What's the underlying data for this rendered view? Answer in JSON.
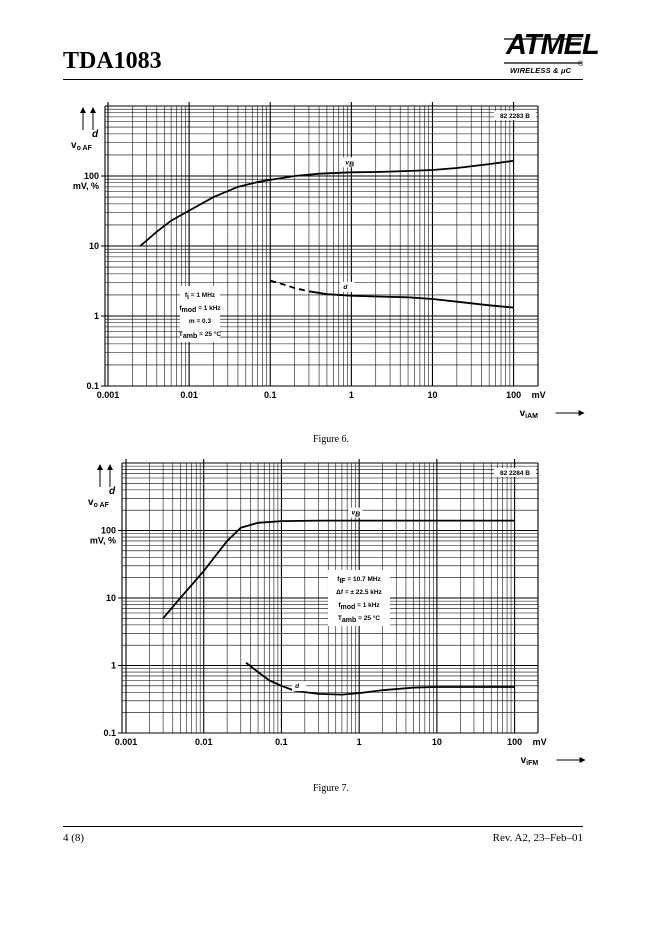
{
  "header": {
    "title": "TDA1083",
    "logo_text": "ATMEL",
    "logo_registered": "®",
    "logo_subtitle": "WIRELESS & μC"
  },
  "footer": {
    "page": "4 (8)",
    "revision": "Rev. A2, 23–Feb–01"
  },
  "chart_data": [
    {
      "type": "line",
      "caption": "Figure 6.",
      "reference": "82 2283 B",
      "x_axis": {
        "label_main": "v",
        "label_sub": "iAM",
        "unit": "mV",
        "scale": "log",
        "range": [
          0.001,
          200
        ],
        "ticks": [
          "0.001",
          "0.01",
          "0.1",
          "1",
          "10",
          "100"
        ]
      },
      "y_axis": {
        "label_d": "d",
        "label_main": "v",
        "label_sub": "o AF",
        "unit": "mV, %",
        "scale": "log",
        "range": [
          0.1,
          1000
        ],
        "ticks": [
          "0.1",
          "1",
          "10",
          "100"
        ]
      },
      "series": [
        {
          "name": "v",
          "name_sub": "B",
          "points": [
            [
              0.0025,
              10
            ],
            [
              0.004,
              16
            ],
            [
              0.006,
              23
            ],
            [
              0.01,
              32
            ],
            [
              0.02,
              50
            ],
            [
              0.04,
              70
            ],
            [
              0.07,
              82
            ],
            [
              0.1,
              88
            ],
            [
              0.2,
              100
            ],
            [
              0.4,
              108
            ],
            [
              1,
              113
            ],
            [
              2,
              114
            ],
            [
              5,
              118
            ],
            [
              10,
              122
            ],
            [
              20,
              130
            ],
            [
              50,
              148
            ],
            [
              100,
              165
            ]
          ]
        },
        {
          "name": "d",
          "name_sub": "",
          "points": [
            [
              0.1,
              3.2
            ],
            [
              0.15,
              2.8
            ],
            [
              0.2,
              2.5
            ],
            [
              0.3,
              2.25
            ],
            [
              0.5,
              2.05
            ],
            [
              1,
              1.95
            ],
            [
              2,
              1.9
            ],
            [
              5,
              1.85
            ],
            [
              10,
              1.75
            ],
            [
              20,
              1.6
            ],
            [
              50,
              1.42
            ],
            [
              100,
              1.32
            ]
          ],
          "dashed_until": 0.22
        }
      ],
      "conditions": [
        {
          "main": "f",
          "sub": "i",
          "rest": " = 1 MHz"
        },
        {
          "main": "f",
          "sub": "mod",
          "rest": " = 1 kHz"
        },
        {
          "main": "m = 0.3",
          "sub": "",
          "rest": ""
        },
        {
          "main": "T",
          "sub": "amb",
          "rest": " = 25 °C"
        }
      ]
    },
    {
      "type": "line",
      "caption": "Figure 7.",
      "reference": "82 2284 B",
      "x_axis": {
        "label_main": "v",
        "label_sub": "iFM",
        "unit": "mV",
        "scale": "log",
        "range": [
          0.001,
          200
        ],
        "ticks": [
          "0.001",
          "0.01",
          "0.1",
          "1",
          "10",
          "100"
        ]
      },
      "y_axis": {
        "label_d": "d",
        "label_main": "v",
        "label_sub": "o AF",
        "unit": "mV, %",
        "scale": "log",
        "range": [
          0.1,
          1000
        ],
        "ticks": [
          "0.1",
          "1",
          "10",
          "100"
        ]
      },
      "series": [
        {
          "name": "v",
          "name_sub": "B",
          "points": [
            [
              0.003,
              5
            ],
            [
              0.005,
              10
            ],
            [
              0.01,
              25
            ],
            [
              0.02,
              70
            ],
            [
              0.03,
              110
            ],
            [
              0.05,
              130
            ],
            [
              0.1,
              138
            ],
            [
              0.3,
              140
            ],
            [
              1,
              140
            ],
            [
              10,
              140
            ],
            [
              100,
              140
            ]
          ]
        },
        {
          "name": "d",
          "name_sub": "",
          "points": [
            [
              0.035,
              1.1
            ],
            [
              0.05,
              0.8
            ],
            [
              0.07,
              0.6
            ],
            [
              0.1,
              0.5
            ],
            [
              0.15,
              0.42
            ],
            [
              0.3,
              0.38
            ],
            [
              0.6,
              0.37
            ],
            [
              1,
              0.39
            ],
            [
              2,
              0.43
            ],
            [
              5,
              0.47
            ],
            [
              10,
              0.48
            ],
            [
              100,
              0.48
            ]
          ]
        }
      ],
      "conditions": [
        {
          "main": "f",
          "sub": "IF",
          "rest": " = 10.7 MHz"
        },
        {
          "main": "Δf = ± 22.5 kHz",
          "sub": "",
          "rest": ""
        },
        {
          "main": "f",
          "sub": "mod",
          "rest": " = 1 kHz"
        },
        {
          "main": "T",
          "sub": "amb",
          "rest": " = 25 °C"
        }
      ]
    }
  ]
}
